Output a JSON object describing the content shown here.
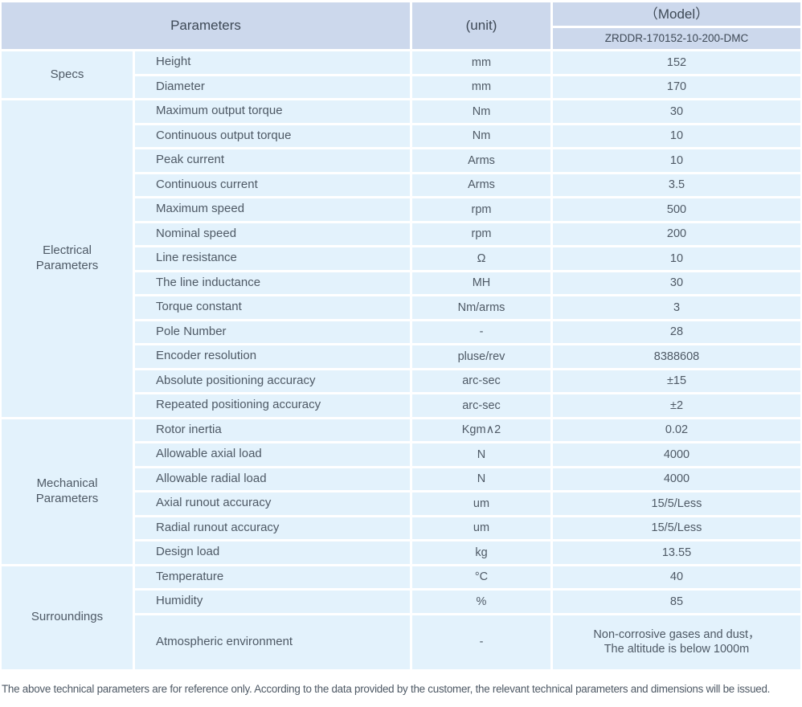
{
  "table": {
    "header": {
      "parameters_label": "Parameters",
      "unit_label": "(unit)",
      "model_label": "（Model）",
      "model_value": "ZRDDR-170152-10-200-DMC"
    },
    "sections": [
      {
        "group": "Specs",
        "rows": [
          {
            "name": "Height",
            "unit": "mm",
            "value": "152"
          },
          {
            "name": "Diameter",
            "unit": "mm",
            "value": "170"
          }
        ]
      },
      {
        "group": "Electrical Parameters",
        "rows": [
          {
            "name": "Maximum output torque",
            "unit": "Nm",
            "value": "30"
          },
          {
            "name": "Continuous output torque",
            "unit": "Nm",
            "value": "10"
          },
          {
            "name": "Peak current",
            "unit": "Arms",
            "value": "10"
          },
          {
            "name": "Continuous current",
            "unit": "Arms",
            "value": "3.5"
          },
          {
            "name": "Maximum speed",
            "unit": "rpm",
            "value": "500"
          },
          {
            "name": "Nominal speed",
            "unit": "rpm",
            "value": "200"
          },
          {
            "name": "Line resistance",
            "unit": "Ω",
            "value": "10"
          },
          {
            "name": "The line inductance",
            "unit": "MH",
            "value": "30"
          },
          {
            "name": "Torque constant",
            "unit": "Nm/arms",
            "value": "3"
          },
          {
            "name": "Pole Number",
            "unit": "-",
            "value": "28"
          },
          {
            "name": "Encoder resolution",
            "unit": "pluse/rev",
            "value": "8388608"
          },
          {
            "name": "Absolute positioning accuracy",
            "unit": "arc-sec",
            "value": "±15"
          },
          {
            "name": "Repeated positioning accuracy",
            "unit": "arc-sec",
            "value": "±2"
          }
        ]
      },
      {
        "group": "Mechanical Parameters",
        "rows": [
          {
            "name": "Rotor inertia",
            "unit": "Kgm∧2",
            "value": "0.02"
          },
          {
            "name": "Allowable axial load",
            "unit": "N",
            "value": "4000"
          },
          {
            "name": "Allowable radial load",
            "unit": "N",
            "value": "4000"
          },
          {
            "name": "Axial runout accuracy",
            "unit": "um",
            "value": "15/5/Less"
          },
          {
            "name": "Radial runout accuracy",
            "unit": "um",
            "value": "15/5/Less"
          },
          {
            "name": "Design load",
            "unit": "kg",
            "value": "13.55"
          }
        ]
      },
      {
        "group": "Surroundings",
        "rows": [
          {
            "name": "Temperature",
            "unit": "°C",
            "value": "40"
          },
          {
            "name": "Humidity",
            "unit": "%",
            "value": "85"
          },
          {
            "name": "Atmospheric environment",
            "unit": "-",
            "value": "Non-corrosive gases and dust，\nThe altitude is below 1000m"
          }
        ]
      }
    ]
  },
  "footer": {
    "note": "The above technical parameters are for reference only. According to the data provided by the customer, the relevant technical parameters and dimensions will be issued."
  },
  "colors": {
    "header_bg": "#ccd8ec",
    "row_bg": "#e3f2fc",
    "text": "#4e5965"
  }
}
